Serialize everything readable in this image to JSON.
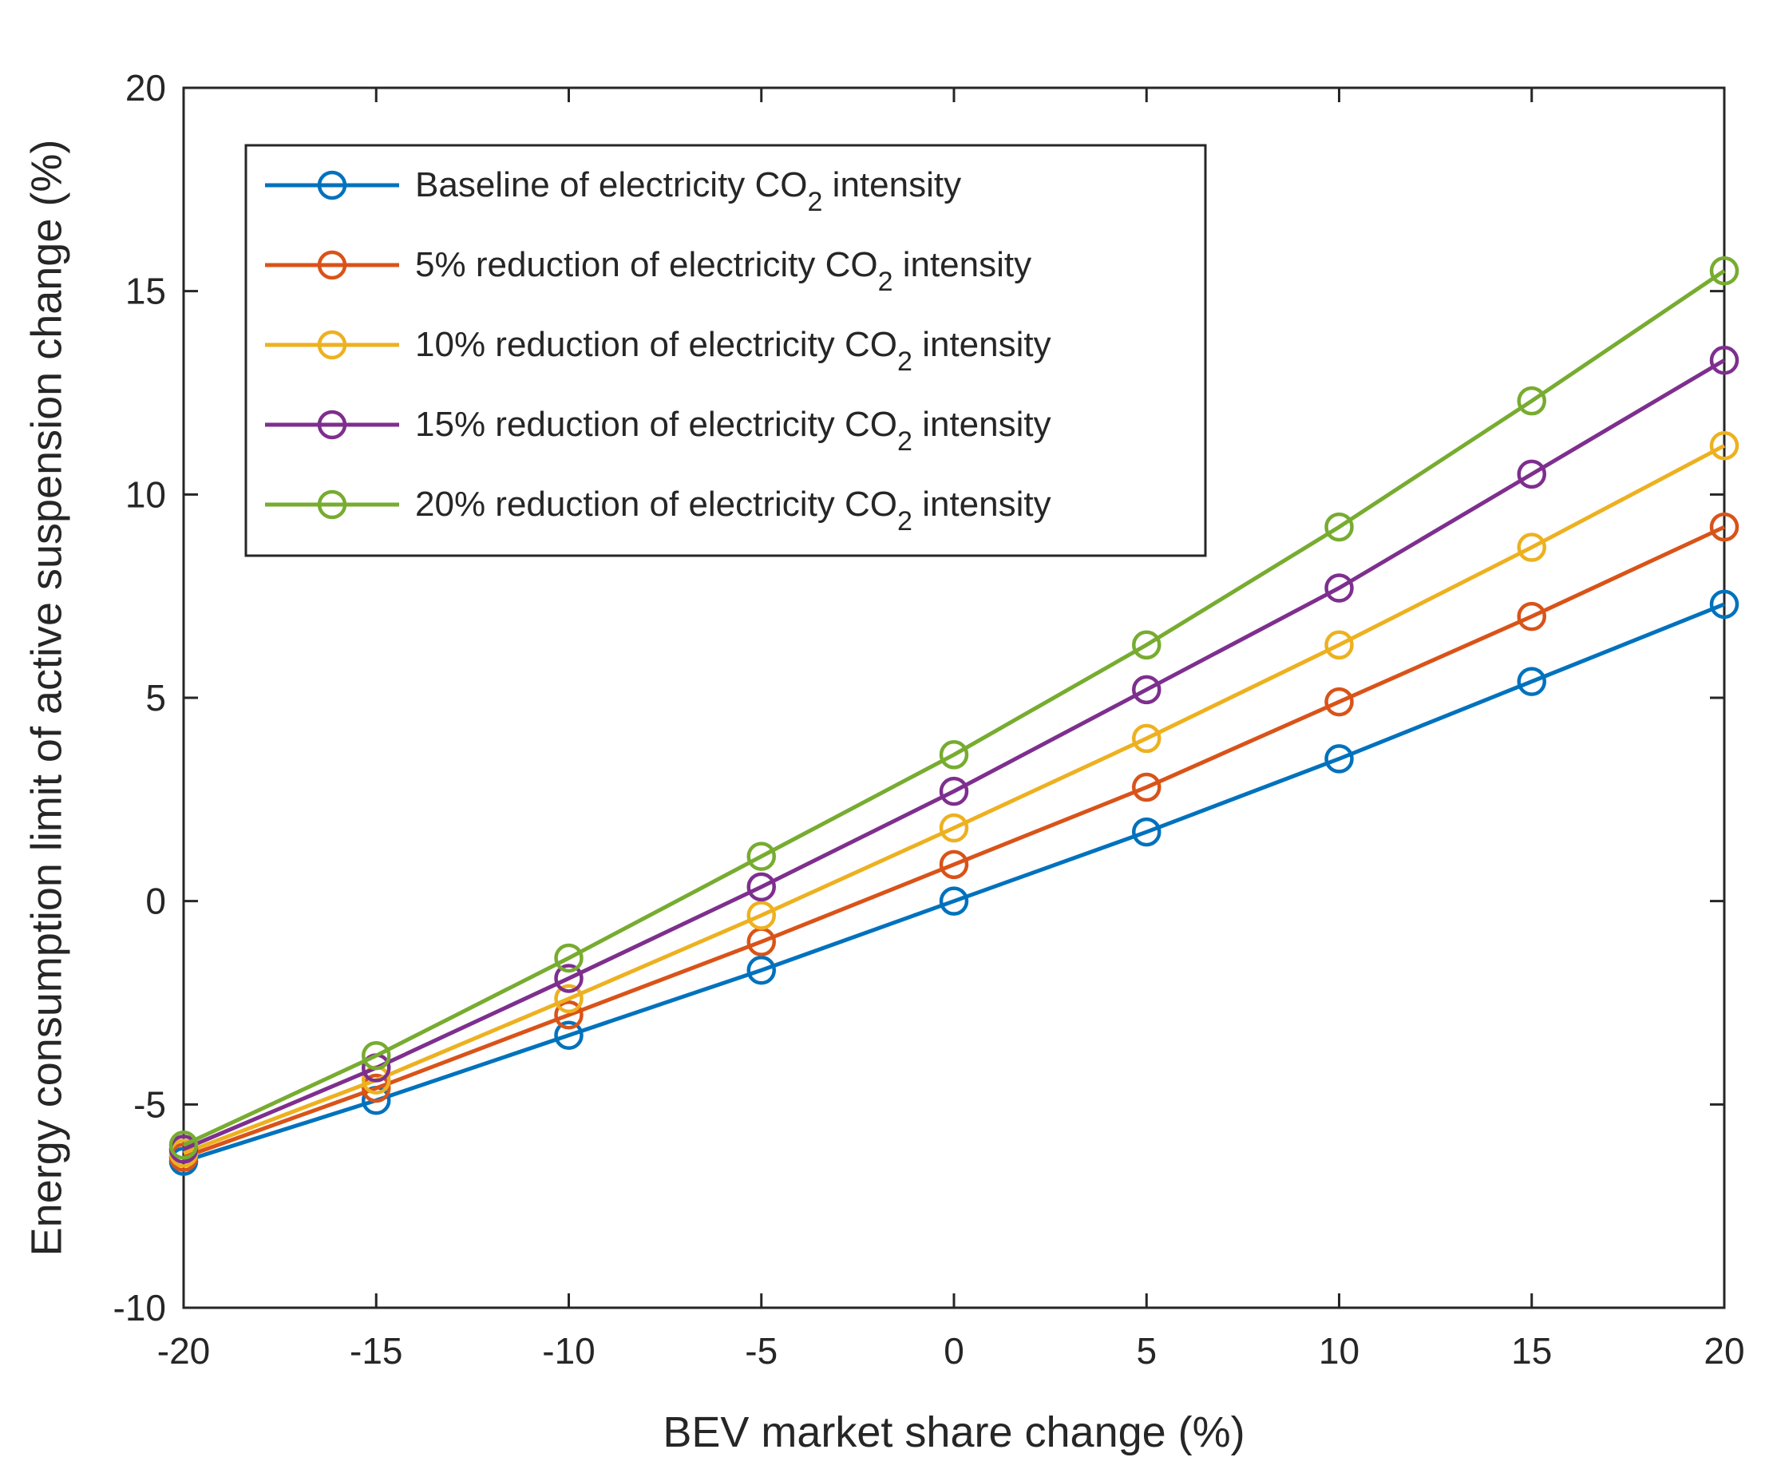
{
  "chart_data": {
    "type": "line",
    "title": "",
    "xlabel": "BEV market share change (%)",
    "ylabel": "Energy consumption limit of active suspension change (%)",
    "xlim": [
      -20,
      20
    ],
    "ylim": [
      -10,
      20
    ],
    "xticks": [
      -20,
      -15,
      -10,
      -5,
      0,
      5,
      10,
      15,
      20
    ],
    "yticks": [
      -10,
      -5,
      0,
      5,
      10,
      15,
      20
    ],
    "x": [
      -20,
      -15,
      -10,
      -5,
      0,
      5,
      10,
      15,
      20
    ],
    "grid": false,
    "legend_position": "top-left",
    "series": [
      {
        "name": "Baseline of electricity CO2 intensity",
        "label_prefix": "Baseline of electricity CO",
        "label_sub": "2",
        "label_suffix": " intensity",
        "color": "#0072BD",
        "values": [
          -6.4,
          -4.9,
          -3.3,
          -1.7,
          0.0,
          1.7,
          3.5,
          5.4,
          7.3
        ]
      },
      {
        "name": "5% reduction of electricity CO2 intensity",
        "label_prefix": "5% reduction of electricity CO",
        "label_sub": "2",
        "label_suffix": " intensity",
        "color": "#D95319",
        "values": [
          -6.3,
          -4.6,
          -2.8,
          -1.0,
          0.9,
          2.8,
          4.9,
          7.0,
          9.2
        ]
      },
      {
        "name": "10% reduction of electricity CO2 intensity",
        "label_prefix": "10% reduction of electricity CO",
        "label_sub": "2",
        "label_suffix": " intensity",
        "color": "#EDB120",
        "values": [
          -6.2,
          -4.4,
          -2.4,
          -0.35,
          1.8,
          4.0,
          6.3,
          8.7,
          11.2
        ]
      },
      {
        "name": "15% reduction of electricity CO2 intensity",
        "label_prefix": "15% reduction of electricity CO",
        "label_sub": "2",
        "label_suffix": " intensity",
        "color": "#7E2F8E",
        "values": [
          -6.1,
          -4.1,
          -1.9,
          0.35,
          2.7,
          5.2,
          7.7,
          10.5,
          13.3
        ]
      },
      {
        "name": "20% reduction of electricity CO2 intensity",
        "label_prefix": "20% reduction of electricity CO",
        "label_sub": "2",
        "label_suffix": " intensity",
        "color": "#77AC30",
        "values": [
          -6.0,
          -3.8,
          -1.4,
          1.1,
          3.6,
          6.3,
          9.2,
          12.3,
          15.5
        ]
      }
    ]
  }
}
